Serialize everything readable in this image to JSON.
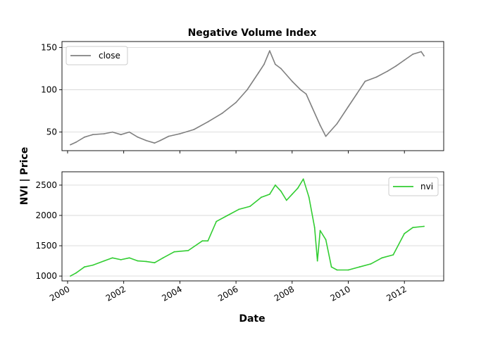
{
  "chart_data": {
    "type": "line",
    "title": "Negative Volume Index",
    "ylabel": "NVI | Price",
    "xlabel": "Date",
    "x_ticks": [
      "2000",
      "2002",
      "2004",
      "2006",
      "2008",
      "2010",
      "2012"
    ],
    "grid": "horizontal",
    "panels": [
      {
        "series": [
          {
            "name": "close",
            "color": "#808080",
            "x": [
              2000.1,
              2000.3,
              2000.6,
              2000.9,
              2001.3,
              2001.6,
              2001.9,
              2002.2,
              2002.5,
              2002.8,
              2003.1,
              2003.3,
              2003.6,
              2004.0,
              2004.5,
              2005.0,
              2005.5,
              2006.0,
              2006.4,
              2006.8,
              2007.0,
              2007.2,
              2007.4,
              2007.6,
              2008.0,
              2008.3,
              2008.5,
              2008.7,
              2009.0,
              2009.2,
              2009.6,
              2010.0,
              2010.3,
              2010.6,
              2011.0,
              2011.4,
              2011.7,
              2012.0,
              2012.3,
              2012.6,
              2012.7
            ],
            "values": [
              35,
              38,
              44,
              47,
              48,
              50,
              47,
              50,
              44,
              40,
              37,
              40,
              45,
              48,
              53,
              62,
              72,
              85,
              100,
              120,
              130,
              146,
              130,
              125,
              110,
              100,
              95,
              80,
              58,
              45,
              60,
              80,
              95,
              110,
              115,
              122,
              128,
              135,
              142,
              145,
              140
            ]
          }
        ],
        "ylim": [
          28,
          157
        ],
        "y_ticks": [
          50,
          100,
          150
        ],
        "legend": "upper-left"
      },
      {
        "series": [
          {
            "name": "nvi",
            "color": "#32cd32",
            "x": [
              2000.1,
              2000.3,
              2000.6,
              2000.9,
              2001.3,
              2001.6,
              2001.9,
              2002.2,
              2002.5,
              2002.8,
              2003.1,
              2003.4,
              2003.8,
              2004.3,
              2004.8,
              2005.0,
              2005.3,
              2005.7,
              2006.1,
              2006.5,
              2006.9,
              2007.2,
              2007.4,
              2007.6,
              2007.8,
              2008.0,
              2008.2,
              2008.4,
              2008.6,
              2008.8,
              2008.9,
              2009.0,
              2009.2,
              2009.4,
              2009.6,
              2010.0,
              2010.4,
              2010.8,
              2011.2,
              2011.6,
              2012.0,
              2012.3,
              2012.7
            ],
            "values": [
              1000,
              1050,
              1150,
              1180,
              1250,
              1300,
              1270,
              1300,
              1250,
              1240,
              1220,
              1300,
              1400,
              1420,
              1580,
              1580,
              1900,
              2000,
              2100,
              2150,
              2300,
              2350,
              2500,
              2400,
              2250,
              2350,
              2450,
              2600,
              2300,
              1800,
              1250,
              1750,
              1600,
              1150,
              1100,
              1100,
              1150,
              1200,
              1300,
              1350,
              1700,
              1800,
              1820
            ]
          }
        ],
        "ylim": [
          920,
          2720
        ],
        "y_ticks": [
          1000,
          1500,
          2000,
          2500
        ],
        "legend": "upper-right"
      }
    ]
  }
}
